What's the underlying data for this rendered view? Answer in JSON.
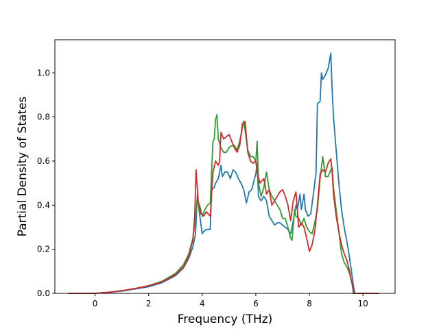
{
  "chart_data": {
    "type": "line",
    "title": "",
    "xlabel": "Frequency (THz)",
    "ylabel": "Partial Density of States",
    "xlim": [
      -1.5,
      11.2
    ],
    "ylim": [
      0.0,
      1.15
    ],
    "xticks": [
      0,
      2,
      4,
      6,
      8,
      10
    ],
    "yticks": [
      0.0,
      0.2,
      0.4,
      0.6,
      0.8,
      1.0
    ],
    "xtick_labels": [
      "0",
      "2",
      "4",
      "6",
      "8",
      "10"
    ],
    "ytick_labels": [
      "0.0",
      "0.2",
      "0.4",
      "0.6",
      "0.8",
      "1.0"
    ],
    "grid": false,
    "legend": "none",
    "series": [
      {
        "color": "#1f77b4",
        "points": [
          [
            -1.0,
            0.0
          ],
          [
            0.0,
            0.0
          ],
          [
            0.5,
            0.004
          ],
          [
            1.0,
            0.01
          ],
          [
            1.5,
            0.02
          ],
          [
            2.0,
            0.03
          ],
          [
            2.5,
            0.048
          ],
          [
            3.0,
            0.08
          ],
          [
            3.3,
            0.115
          ],
          [
            3.5,
            0.16
          ],
          [
            3.65,
            0.21
          ],
          [
            3.75,
            0.27
          ],
          [
            3.82,
            0.45
          ],
          [
            3.9,
            0.36
          ],
          [
            4.0,
            0.27
          ],
          [
            4.05,
            0.28
          ],
          [
            4.15,
            0.29
          ],
          [
            4.3,
            0.29
          ],
          [
            4.35,
            0.47
          ],
          [
            4.45,
            0.48
          ],
          [
            4.5,
            0.5
          ],
          [
            4.6,
            0.52
          ],
          [
            4.7,
            0.58
          ],
          [
            4.75,
            0.53
          ],
          [
            4.85,
            0.55
          ],
          [
            4.95,
            0.55
          ],
          [
            5.05,
            0.52
          ],
          [
            5.15,
            0.56
          ],
          [
            5.25,
            0.55
          ],
          [
            5.35,
            0.52
          ],
          [
            5.45,
            0.5
          ],
          [
            5.55,
            0.47
          ],
          [
            5.65,
            0.41
          ],
          [
            5.75,
            0.46
          ],
          [
            5.85,
            0.47
          ],
          [
            5.95,
            0.52
          ],
          [
            6.0,
            0.54
          ],
          [
            6.05,
            0.59
          ],
          [
            6.1,
            0.44
          ],
          [
            6.2,
            0.42
          ],
          [
            6.3,
            0.44
          ],
          [
            6.4,
            0.42
          ],
          [
            6.5,
            0.35
          ],
          [
            6.6,
            0.33
          ],
          [
            6.7,
            0.31
          ],
          [
            6.8,
            0.32
          ],
          [
            6.9,
            0.32
          ],
          [
            7.0,
            0.31
          ],
          [
            7.1,
            0.3
          ],
          [
            7.2,
            0.29
          ],
          [
            7.3,
            0.27
          ],
          [
            7.4,
            0.33
          ],
          [
            7.5,
            0.4
          ],
          [
            7.55,
            0.38
          ],
          [
            7.65,
            0.45
          ],
          [
            7.7,
            0.38
          ],
          [
            7.8,
            0.45
          ],
          [
            7.85,
            0.38
          ],
          [
            7.95,
            0.35
          ],
          [
            8.05,
            0.36
          ],
          [
            8.15,
            0.45
          ],
          [
            8.25,
            0.55
          ],
          [
            8.3,
            0.86
          ],
          [
            8.4,
            0.87
          ],
          [
            8.45,
            1.0
          ],
          [
            8.5,
            0.97
          ],
          [
            8.6,
            0.99
          ],
          [
            8.7,
            1.02
          ],
          [
            8.8,
            1.09
          ],
          [
            8.85,
            0.92
          ],
          [
            8.9,
            0.8
          ],
          [
            9.0,
            0.65
          ],
          [
            9.1,
            0.5
          ],
          [
            9.2,
            0.38
          ],
          [
            9.3,
            0.3
          ],
          [
            9.45,
            0.2
          ],
          [
            9.55,
            0.12
          ],
          [
            9.65,
            0.03
          ],
          [
            9.7,
            0.0
          ],
          [
            10.6,
            0.0
          ]
        ]
      },
      {
        "color": "#2ca02c",
        "points": [
          [
            -1.0,
            0.0
          ],
          [
            0.0,
            0.0
          ],
          [
            0.5,
            0.005
          ],
          [
            1.0,
            0.012
          ],
          [
            1.5,
            0.022
          ],
          [
            2.0,
            0.035
          ],
          [
            2.5,
            0.055
          ],
          [
            3.0,
            0.09
          ],
          [
            3.3,
            0.13
          ],
          [
            3.5,
            0.18
          ],
          [
            3.65,
            0.25
          ],
          [
            3.75,
            0.33
          ],
          [
            3.8,
            0.42
          ],
          [
            3.9,
            0.4
          ],
          [
            4.0,
            0.35
          ],
          [
            4.1,
            0.38
          ],
          [
            4.2,
            0.4
          ],
          [
            4.3,
            0.41
          ],
          [
            4.35,
            0.55
          ],
          [
            4.4,
            0.69
          ],
          [
            4.45,
            0.7
          ],
          [
            4.5,
            0.79
          ],
          [
            4.55,
            0.81
          ],
          [
            4.6,
            0.7
          ],
          [
            4.7,
            0.66
          ],
          [
            4.8,
            0.64
          ],
          [
            4.9,
            0.64
          ],
          [
            5.0,
            0.66
          ],
          [
            5.1,
            0.67
          ],
          [
            5.2,
            0.67
          ],
          [
            5.3,
            0.65
          ],
          [
            5.4,
            0.69
          ],
          [
            5.5,
            0.75
          ],
          [
            5.55,
            0.78
          ],
          [
            5.6,
            0.74
          ],
          [
            5.7,
            0.65
          ],
          [
            5.8,
            0.62
          ],
          [
            5.9,
            0.62
          ],
          [
            6.0,
            0.6
          ],
          [
            6.05,
            0.69
          ],
          [
            6.1,
            0.5
          ],
          [
            6.2,
            0.44
          ],
          [
            6.3,
            0.48
          ],
          [
            6.4,
            0.55
          ],
          [
            6.5,
            0.47
          ],
          [
            6.6,
            0.44
          ],
          [
            6.7,
            0.42
          ],
          [
            6.8,
            0.4
          ],
          [
            6.9,
            0.38
          ],
          [
            7.0,
            0.34
          ],
          [
            7.1,
            0.34
          ],
          [
            7.2,
            0.3
          ],
          [
            7.3,
            0.25
          ],
          [
            7.35,
            0.24
          ],
          [
            7.45,
            0.38
          ],
          [
            7.5,
            0.35
          ],
          [
            7.6,
            0.34
          ],
          [
            7.7,
            0.31
          ],
          [
            7.8,
            0.34
          ],
          [
            7.9,
            0.3
          ],
          [
            8.0,
            0.28
          ],
          [
            8.1,
            0.27
          ],
          [
            8.2,
            0.32
          ],
          [
            8.3,
            0.38
          ],
          [
            8.4,
            0.52
          ],
          [
            8.5,
            0.62
          ],
          [
            8.6,
            0.53
          ],
          [
            8.7,
            0.53
          ],
          [
            8.8,
            0.56
          ],
          [
            8.85,
            0.57
          ],
          [
            8.9,
            0.48
          ],
          [
            9.0,
            0.38
          ],
          [
            9.1,
            0.28
          ],
          [
            9.2,
            0.18
          ],
          [
            9.3,
            0.14
          ],
          [
            9.4,
            0.12
          ],
          [
            9.5,
            0.09
          ],
          [
            9.6,
            0.04
          ],
          [
            9.65,
            0.0
          ],
          [
            10.6,
            0.0
          ]
        ]
      },
      {
        "color": "#d62728",
        "points": [
          [
            -1.0,
            0.0
          ],
          [
            0.0,
            0.0
          ],
          [
            0.5,
            0.005
          ],
          [
            1.0,
            0.012
          ],
          [
            1.5,
            0.022
          ],
          [
            2.0,
            0.034
          ],
          [
            2.5,
            0.052
          ],
          [
            3.0,
            0.085
          ],
          [
            3.3,
            0.12
          ],
          [
            3.5,
            0.17
          ],
          [
            3.65,
            0.24
          ],
          [
            3.72,
            0.35
          ],
          [
            3.77,
            0.56
          ],
          [
            3.85,
            0.42
          ],
          [
            3.95,
            0.36
          ],
          [
            4.05,
            0.35
          ],
          [
            4.15,
            0.37
          ],
          [
            4.3,
            0.35
          ],
          [
            4.4,
            0.55
          ],
          [
            4.5,
            0.6
          ],
          [
            4.6,
            0.58
          ],
          [
            4.65,
            0.6
          ],
          [
            4.7,
            0.73
          ],
          [
            4.8,
            0.7
          ],
          [
            4.9,
            0.71
          ],
          [
            5.0,
            0.72
          ],
          [
            5.1,
            0.69
          ],
          [
            5.2,
            0.66
          ],
          [
            5.3,
            0.64
          ],
          [
            5.4,
            0.67
          ],
          [
            5.5,
            0.77
          ],
          [
            5.6,
            0.78
          ],
          [
            5.7,
            0.64
          ],
          [
            5.8,
            0.6
          ],
          [
            5.9,
            0.59
          ],
          [
            6.0,
            0.6
          ],
          [
            6.05,
            0.55
          ],
          [
            6.15,
            0.5
          ],
          [
            6.3,
            0.52
          ],
          [
            6.4,
            0.45
          ],
          [
            6.5,
            0.47
          ],
          [
            6.6,
            0.4
          ],
          [
            6.7,
            0.42
          ],
          [
            6.8,
            0.44
          ],
          [
            6.9,
            0.46
          ],
          [
            7.0,
            0.47
          ],
          [
            7.1,
            0.44
          ],
          [
            7.2,
            0.4
          ],
          [
            7.3,
            0.33
          ],
          [
            7.4,
            0.42
          ],
          [
            7.5,
            0.46
          ],
          [
            7.6,
            0.3
          ],
          [
            7.7,
            0.32
          ],
          [
            7.8,
            0.3
          ],
          [
            7.9,
            0.25
          ],
          [
            8.0,
            0.19
          ],
          [
            8.1,
            0.22
          ],
          [
            8.2,
            0.28
          ],
          [
            8.3,
            0.4
          ],
          [
            8.4,
            0.54
          ],
          [
            8.5,
            0.56
          ],
          [
            8.6,
            0.55
          ],
          [
            8.7,
            0.59
          ],
          [
            8.8,
            0.61
          ],
          [
            8.85,
            0.55
          ],
          [
            8.9,
            0.45
          ],
          [
            9.0,
            0.35
          ],
          [
            9.1,
            0.28
          ],
          [
            9.2,
            0.22
          ],
          [
            9.3,
            0.18
          ],
          [
            9.4,
            0.15
          ],
          [
            9.5,
            0.1
          ],
          [
            9.6,
            0.04
          ],
          [
            9.65,
            0.0
          ],
          [
            10.6,
            0.0
          ]
        ]
      }
    ]
  }
}
